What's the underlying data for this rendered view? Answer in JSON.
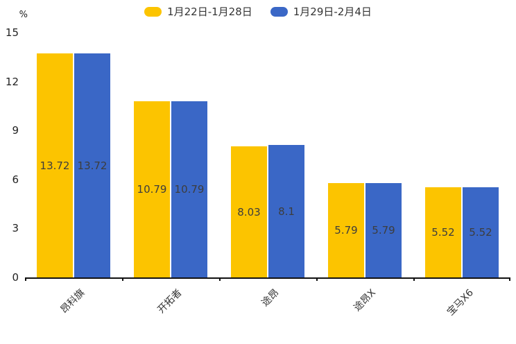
{
  "chart_data": {
    "type": "bar",
    "title": "",
    "unit": "%",
    "categories": [
      "昂科旗",
      "开拓者",
      "途昂",
      "途昂X",
      "宝马X6"
    ],
    "series": [
      {
        "name": "1月22日-1月28日",
        "color": "#FCC400",
        "values": [
          13.72,
          10.79,
          8.03,
          5.79,
          5.52
        ]
      },
      {
        "name": "1月29日-2月4日",
        "color": "#3A67C6",
        "values": [
          13.72,
          10.79,
          8.1,
          5.79,
          5.52
        ]
      }
    ],
    "value_labels": [
      "13.72",
      "10.79",
      "8.03",
      "5.79",
      "5.52",
      "13.72",
      "10.79",
      "8.1",
      "5.79",
      "5.52"
    ],
    "ylim": [
      0,
      15
    ],
    "yticks": [
      0,
      3,
      6,
      9,
      12,
      15
    ],
    "legend_position": "top",
    "grid": false,
    "colors": {
      "axis": "#111111",
      "tick_text": "#222222",
      "bar_label_text": "#3d3d3d",
      "legend_text": "#333333"
    }
  }
}
